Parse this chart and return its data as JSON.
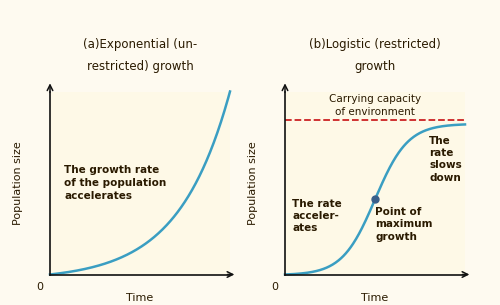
{
  "fig_width": 5.0,
  "fig_height": 3.05,
  "dpi": 100,
  "bg_color": "#fefaf0",
  "plot_bg_color": "#fef9e7",
  "curve_color": "#3a9ec2",
  "curve_lw": 1.8,
  "carrying_cap_color": "#cc2222",
  "carrying_cap_lw": 1.3,
  "dot_color": "#3a5f8a",
  "dot_size": 5,
  "axis_color": "#111111",
  "title_a_line1": "(a)Exponential (un-",
  "title_a_line2": "restricted) growth",
  "title_b_line1": "(b)Logistic (restricted)",
  "title_b_line2": "growth",
  "ylabel": "Population size",
  "xlabel": "Time",
  "annotation_a": "The growth rate\nof the population\naccelerates",
  "annotation_b_left": "The rate\nacceler-\nates",
  "annotation_b_right": "The\nrate\nslows\ndown",
  "annotation_b_point": "Point of\nmaximum\ngrowth",
  "annotation_carrying": "Carrying capacity\nof environment",
  "title_fontsize": 8.5,
  "label_fontsize": 8.0,
  "annot_fontsize": 7.5,
  "annot_color": "#2a1a00",
  "zero_fontsize": 8.0
}
